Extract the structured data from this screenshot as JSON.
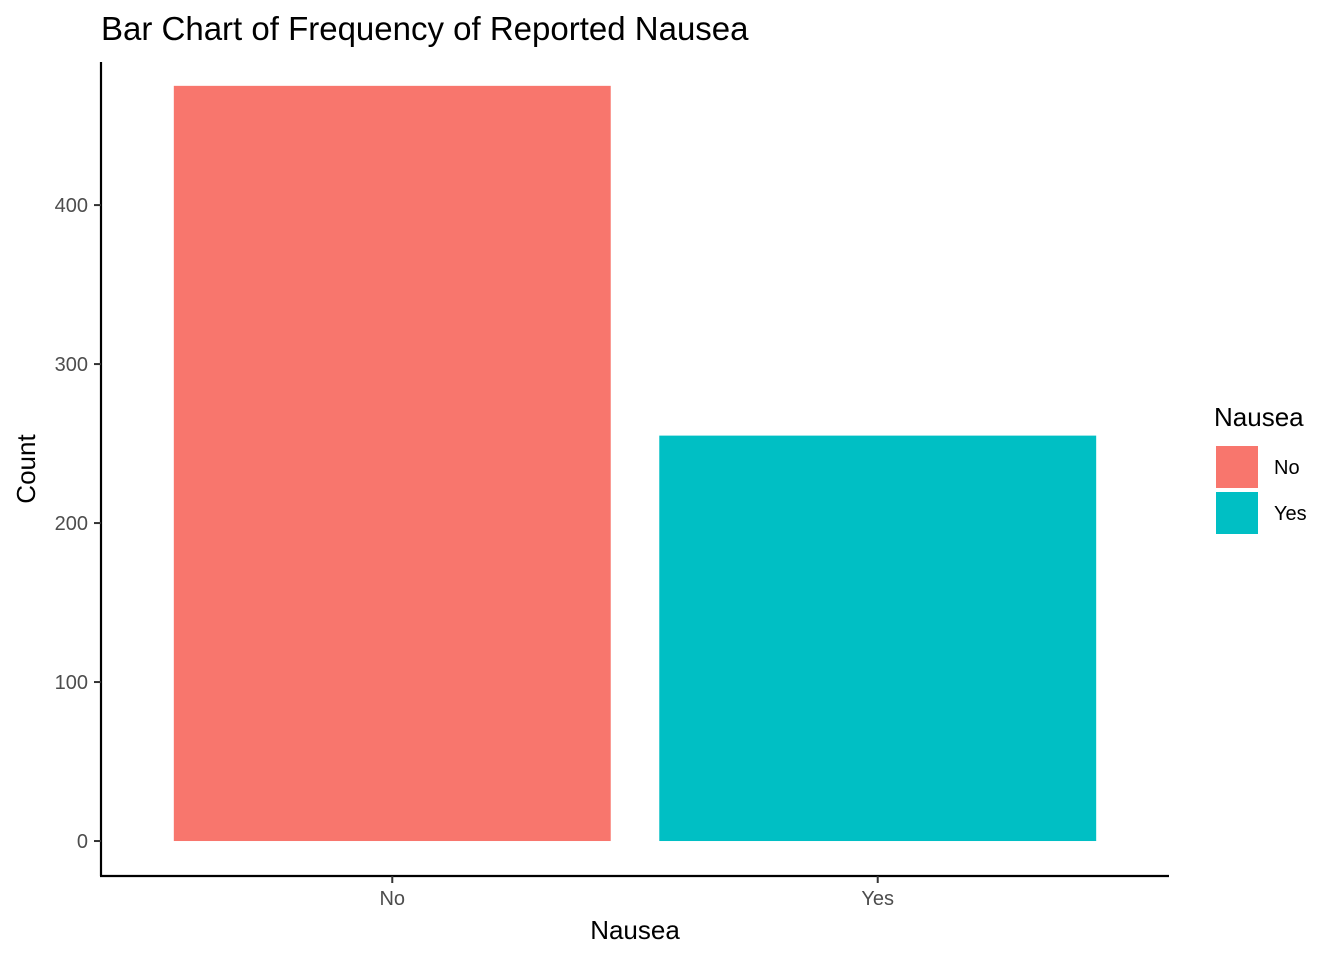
{
  "chart_data": {
    "type": "bar",
    "title": "Bar Chart of Frequency of Reported Nausea",
    "xlabel": "Nausea",
    "ylabel": "Count",
    "categories": [
      "No",
      "Yes"
    ],
    "values": [
      475,
      255
    ],
    "colors": [
      "#F8766D",
      "#00BFC4"
    ],
    "ylim": [
      -22,
      490
    ],
    "yticks": [
      0,
      100,
      200,
      300,
      400
    ],
    "grid": false,
    "legend": {
      "title": "Nausea",
      "position": "right",
      "items": [
        {
          "label": "No",
          "color": "#F8766D"
        },
        {
          "label": "Yes",
          "color": "#00BFC4"
        }
      ]
    }
  }
}
